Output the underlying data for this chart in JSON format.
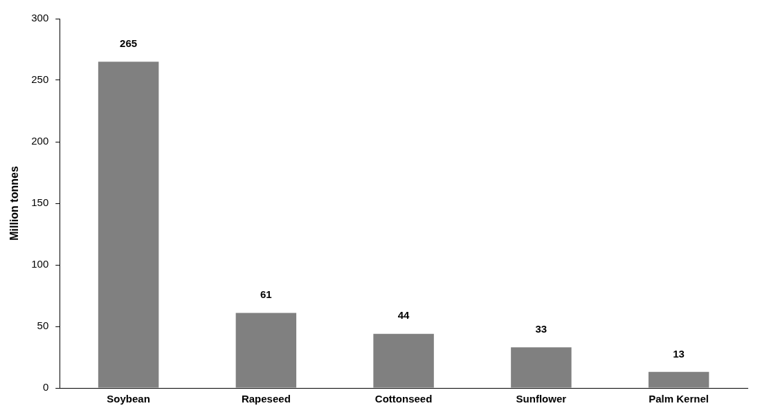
{
  "chart_data": {
    "type": "bar",
    "ylabel": "Million tonnes",
    "categories": [
      "Soybean",
      "Rapeseed",
      "Cottonseed",
      "Sunflower",
      "Palm Kernel"
    ],
    "values": [
      265,
      61,
      44,
      33,
      13
    ],
    "color": "#808080",
    "ylim": [
      0,
      300
    ],
    "yticks": [
      0,
      50,
      100,
      150,
      200,
      250,
      300
    ],
    "grid": false,
    "legend": false,
    "data_labels": true
  }
}
